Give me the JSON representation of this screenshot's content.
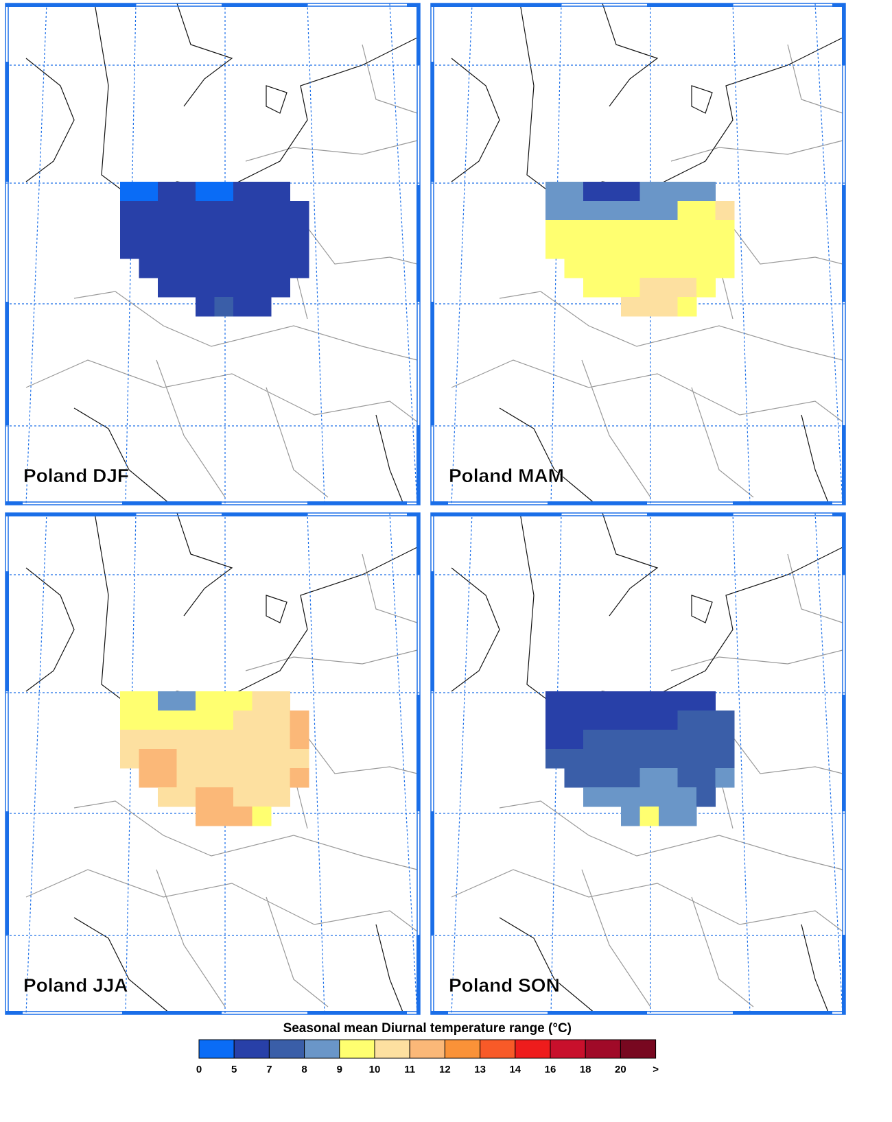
{
  "panels": [
    {
      "title": "Poland DJF",
      "grid": [
        [
          4,
          4,
          6,
          6,
          4,
          4,
          6,
          6,
          6,
          null
        ],
        [
          6,
          6,
          6,
          6,
          6,
          6,
          6,
          6,
          6,
          6
        ],
        [
          6,
          6,
          6,
          6,
          6,
          6,
          6,
          6,
          6,
          6
        ],
        [
          6,
          6,
          6,
          6,
          6,
          6,
          6,
          6,
          6,
          6
        ],
        [
          null,
          6,
          6,
          6,
          6,
          6,
          6,
          6,
          6,
          6
        ],
        [
          null,
          null,
          6,
          6,
          6,
          6,
          6,
          6,
          6,
          null
        ],
        [
          null,
          null,
          null,
          null,
          6,
          7.5,
          6,
          6,
          null,
          null
        ]
      ]
    },
    {
      "title": "Poland MAM",
      "grid": [
        [
          8.5,
          8.5,
          6,
          6,
          6,
          8.5,
          8.5,
          8.5,
          8.5,
          null
        ],
        [
          8.5,
          8.5,
          8.5,
          8.5,
          8.5,
          8.5,
          8.5,
          9.5,
          9.5,
          10.5
        ],
        [
          9.5,
          9.5,
          9.5,
          9.5,
          9.5,
          9.5,
          9.5,
          9.5,
          9.5,
          9.5
        ],
        [
          9.5,
          9.5,
          9.5,
          9.5,
          9.5,
          9.5,
          9.5,
          9.5,
          9.5,
          9.5
        ],
        [
          null,
          9.5,
          9.5,
          9.5,
          9.5,
          9.5,
          9.5,
          9.5,
          9.5,
          9.5
        ],
        [
          null,
          null,
          9.5,
          9.5,
          9.5,
          10.5,
          10.5,
          10.5,
          9.5,
          null
        ],
        [
          null,
          null,
          null,
          null,
          10.5,
          10.5,
          10.5,
          9.5,
          null,
          null
        ]
      ]
    },
    {
      "title": "Poland JJA",
      "grid": [
        [
          9.5,
          9.5,
          8.5,
          8.5,
          9.5,
          9.5,
          9.5,
          10.5,
          10.5,
          null
        ],
        [
          9.5,
          9.5,
          9.5,
          9.5,
          9.5,
          9.5,
          10.5,
          10.5,
          10.5,
          11.5
        ],
        [
          10.5,
          10.5,
          10.5,
          10.5,
          10.5,
          10.5,
          10.5,
          10.5,
          10.5,
          11.5
        ],
        [
          10.5,
          11.5,
          11.5,
          10.5,
          10.5,
          10.5,
          10.5,
          10.5,
          10.5,
          10.5
        ],
        [
          null,
          11.5,
          11.5,
          10.5,
          10.5,
          10.5,
          10.5,
          10.5,
          10.5,
          11.5
        ],
        [
          null,
          null,
          10.5,
          10.5,
          11.5,
          11.5,
          10.5,
          10.5,
          10.5,
          null
        ],
        [
          null,
          null,
          null,
          null,
          11.5,
          11.5,
          11.5,
          9.5,
          null,
          null
        ]
      ]
    },
    {
      "title": "Poland SON",
      "grid": [
        [
          6,
          6,
          6,
          6,
          6,
          6,
          6,
          6,
          6,
          null
        ],
        [
          6,
          6,
          6,
          6,
          6,
          6,
          6,
          7.5,
          7.5,
          7.5
        ],
        [
          6,
          6,
          7.5,
          7.5,
          7.5,
          7.5,
          7.5,
          7.5,
          7.5,
          7.5
        ],
        [
          7.5,
          7.5,
          7.5,
          7.5,
          7.5,
          7.5,
          7.5,
          7.5,
          7.5,
          7.5
        ],
        [
          null,
          7.5,
          7.5,
          7.5,
          7.5,
          8.5,
          8.5,
          7.5,
          7.5,
          8.5
        ],
        [
          null,
          null,
          8.5,
          8.5,
          8.5,
          8.5,
          8.5,
          8.5,
          7.5,
          null
        ],
        [
          null,
          null,
          null,
          null,
          8.5,
          9.5,
          8.5,
          8.5,
          null,
          null
        ]
      ]
    }
  ],
  "colorbar": {
    "title": "Seasonal mean Diurnal temperature range (°C)",
    "levels": [
      0,
      5,
      7,
      8,
      9,
      10,
      11,
      12,
      13,
      14,
      16,
      18,
      20
    ],
    "over_label": ">",
    "colors": [
      "#0a6cf6",
      "#2840a8",
      "#3a5ea8",
      "#6a96c8",
      "#ffff70",
      "#fde0a0",
      "#fbb878",
      "#fa9238",
      "#f85a28",
      "#ee1c1c",
      "#c8102c",
      "#a00a28",
      "#780820"
    ]
  }
}
